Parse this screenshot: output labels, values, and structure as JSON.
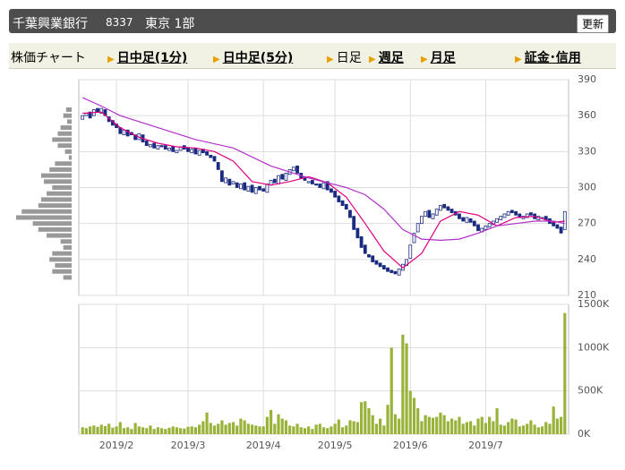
{
  "header": {
    "title": "千葉興業銀行",
    "code": "8337",
    "market": "東京 1部",
    "button": "更新"
  },
  "tabs": [
    "株価チャート",
    "日中足(1分)",
    "日中足(5分)",
    "日足",
    "週足",
    "月足",
    "証金･信用"
  ],
  "chart_data": {
    "type": "candlestick",
    "open": [
      357,
      360,
      363,
      360,
      366,
      362,
      365,
      359,
      356,
      353,
      350,
      344,
      348,
      346,
      344,
      340,
      344,
      339,
      334,
      337,
      332,
      335,
      335,
      331,
      334,
      329,
      331,
      335,
      333,
      329,
      333,
      327,
      332,
      330,
      327,
      326,
      321,
      314,
      304,
      307,
      303,
      304,
      299,
      304,
      297,
      302,
      295,
      301,
      299,
      296,
      302,
      307,
      303,
      311,
      306,
      311,
      314,
      318,
      312,
      309,
      304,
      306,
      303,
      303,
      299,
      305,
      299,
      297,
      293,
      289,
      286,
      281,
      276,
      266,
      259,
      252,
      244,
      243,
      239,
      237,
      235,
      233,
      231,
      230,
      227,
      231,
      235,
      241,
      254,
      263,
      270,
      276,
      281,
      274,
      277,
      281,
      286,
      284,
      282,
      280,
      278,
      275,
      271,
      274,
      272,
      269,
      263,
      265,
      267,
      269,
      271,
      273,
      275,
      277,
      281,
      280,
      278,
      274,
      275,
      279,
      278,
      273,
      275,
      276,
      274,
      271,
      269,
      267,
      265
    ],
    "close": [
      360,
      362,
      358,
      365,
      363,
      366,
      360,
      355,
      352,
      350,
      345,
      348,
      343,
      344,
      340,
      345,
      338,
      335,
      336,
      333,
      335,
      334,
      332,
      333,
      330,
      331,
      334,
      332,
      330,
      332,
      328,
      331,
      329,
      327,
      325,
      322,
      315,
      305,
      308,
      302,
      305,
      300,
      303,
      298,
      301,
      296,
      300,
      298,
      297,
      303,
      306,
      304,
      310,
      307,
      312,
      315,
      317,
      312,
      308,
      306,
      305,
      303,
      302,
      300,
      304,
      298,
      296,
      292,
      288,
      285,
      282,
      275,
      265,
      258,
      250,
      245,
      242,
      238,
      236,
      234,
      232,
      230,
      229,
      228,
      232,
      236,
      240,
      252,
      262,
      270,
      276,
      280,
      275,
      278,
      282,
      285,
      283,
      281,
      279,
      277,
      274,
      272,
      275,
      271,
      268,
      264,
      266,
      268,
      270,
      272,
      274,
      276,
      278,
      280,
      279,
      277,
      275,
      276,
      278,
      277,
      274,
      276,
      275,
      273,
      270,
      268,
      266,
      262,
      280
    ],
    "xlim": [
      -1,
      129
    ],
    "xticks": [
      {
        "value": 9,
        "label": "2019/2"
      },
      {
        "value": 28,
        "label": "2019/3"
      },
      {
        "value": 48,
        "label": "2019/4"
      },
      {
        "value": 67,
        "label": "2019/5"
      },
      {
        "value": 87,
        "label": "2019/6"
      },
      {
        "value": 107,
        "label": "2019/7"
      }
    ],
    "ylim": [
      210,
      390
    ],
    "yticks": [
      210,
      240,
      270,
      300,
      330,
      360,
      390
    ],
    "grid": true,
    "up_color": "#ffffff",
    "down_color": "#1a2a80",
    "series": [
      {
        "color": "#e0007f",
        "x": [
          0,
          5,
          10,
          15,
          20,
          25,
          30,
          35,
          40,
          45,
          50,
          55,
          60,
          65,
          70,
          75,
          80,
          85,
          90,
          95,
          100,
          105,
          110,
          115,
          120,
          125,
          128
        ],
        "values": [
          362,
          363,
          350,
          342,
          337,
          334,
          333,
          330,
          322,
          305,
          302,
          305,
          309,
          304,
          292,
          270,
          247,
          233,
          245,
          272,
          280,
          277,
          268,
          275,
          276,
          271,
          272
        ]
      },
      {
        "color": "#b030c8",
        "x": [
          0,
          5,
          10,
          20,
          30,
          40,
          50,
          60,
          70,
          75,
          80,
          85,
          90,
          95,
          100,
          105,
          110,
          115,
          120,
          125,
          128
        ],
        "values": [
          375,
          368,
          360,
          350,
          340,
          333,
          318,
          308,
          300,
          294,
          282,
          265,
          257,
          256,
          257,
          262,
          268,
          270,
          272,
          272,
          270
        ]
      }
    ],
    "volume": {
      "color": "#99b33a",
      "ylim": [
        0,
        1500
      ],
      "yticks": [
        {
          "value": 0,
          "label": "0K"
        },
        {
          "value": 500,
          "label": "500K"
        },
        {
          "value": 1000,
          "label": "1000K"
        },
        {
          "value": 1500,
          "label": "1500K"
        }
      ],
      "values": [
        80,
        70,
        90,
        100,
        85,
        110,
        95,
        120,
        75,
        90,
        140,
        70,
        80,
        60,
        130,
        90,
        80,
        70,
        100,
        60,
        80,
        70,
        60,
        75,
        90,
        80,
        70,
        65,
        85,
        90,
        80,
        110,
        150,
        250,
        130,
        100,
        120,
        160,
        110,
        130,
        140,
        100,
        180,
        160,
        120,
        110,
        100,
        90,
        90,
        200,
        280,
        120,
        230,
        180,
        160,
        100,
        90,
        120,
        80,
        70,
        90,
        60,
        110,
        120,
        80,
        70,
        90,
        120,
        170,
        80,
        100,
        160,
        150,
        140,
        370,
        380,
        300,
        220,
        120,
        180,
        100,
        340,
        1000,
        230,
        180,
        1150,
        1050,
        500,
        420,
        300,
        150,
        220,
        200,
        190,
        200,
        250,
        220,
        150,
        180,
        160,
        200,
        120,
        140,
        150,
        100,
        180,
        200,
        130,
        200,
        150,
        300,
        110,
        100,
        140,
        180,
        170,
        90,
        100,
        120,
        160,
        110,
        80,
        90,
        140,
        120,
        320,
        180,
        200,
        1400
      ]
    },
    "price_volume": {
      "color": "#999999",
      "prices": [
        365,
        360,
        355,
        350,
        345,
        340,
        335,
        330,
        325,
        320,
        315,
        310,
        305,
        300,
        295,
        290,
        285,
        280,
        275,
        270,
        265,
        260,
        255,
        250,
        245,
        240,
        235,
        230,
        225
      ],
      "values": [
        10,
        15,
        8,
        20,
        25,
        35,
        25,
        12,
        5,
        30,
        40,
        55,
        50,
        35,
        45,
        55,
        60,
        90,
        100,
        70,
        60,
        45,
        20,
        15,
        35,
        40,
        30,
        35,
        15
      ]
    }
  }
}
